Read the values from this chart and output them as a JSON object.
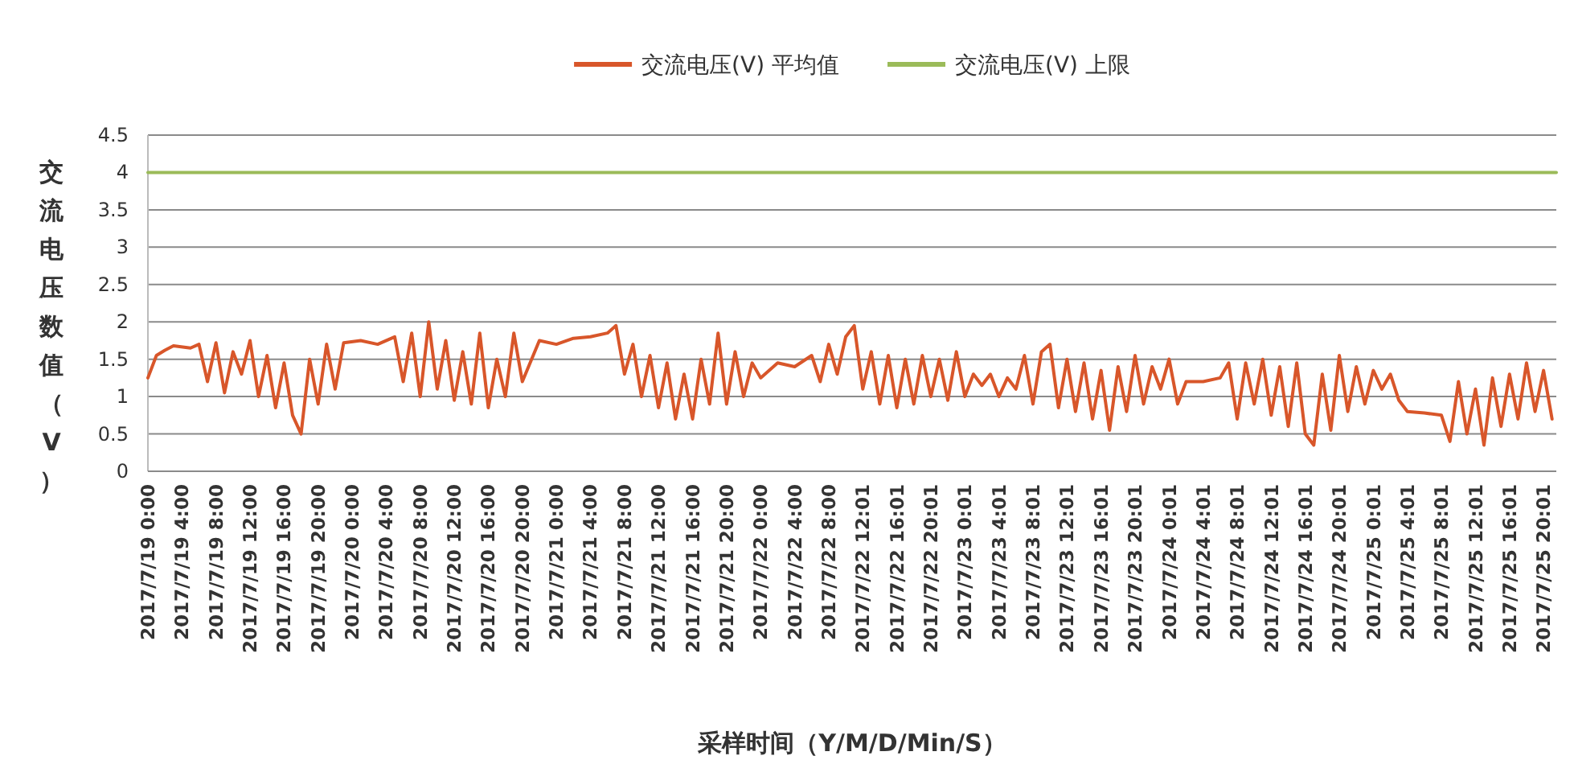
{
  "chart_data": {
    "type": "line",
    "xlabel": "采样时间（Y/M/D/Min/S）",
    "ylabel": "交流电压数值（V）",
    "legend": "top",
    "grid": "y",
    "ylim": [
      0,
      4.5
    ],
    "yticks": [
      0,
      0.5,
      1,
      1.5,
      2,
      2.5,
      3,
      3.5,
      4,
      4.5
    ],
    "xlim": [
      "2017-07-19T00:00",
      "2017-07-25T21:30"
    ],
    "xticks": [
      {
        "value": "2017-07-19T00:00",
        "label": "2017/7/19 0:00"
      },
      {
        "value": "2017-07-19T04:00",
        "label": "2017/7/19 4:00"
      },
      {
        "value": "2017-07-19T08:00",
        "label": "2017/7/19 8:00"
      },
      {
        "value": "2017-07-19T12:00",
        "label": "2017/7/19 12:00"
      },
      {
        "value": "2017-07-19T16:00",
        "label": "2017/7/19 16:00"
      },
      {
        "value": "2017-07-19T20:00",
        "label": "2017/7/19 20:00"
      },
      {
        "value": "2017-07-20T00:00",
        "label": "2017/7/20 0:00"
      },
      {
        "value": "2017-07-20T04:00",
        "label": "2017/7/20 4:00"
      },
      {
        "value": "2017-07-20T08:00",
        "label": "2017/7/20 8:00"
      },
      {
        "value": "2017-07-20T12:00",
        "label": "2017/7/20 12:00"
      },
      {
        "value": "2017-07-20T16:00",
        "label": "2017/7/20 16:00"
      },
      {
        "value": "2017-07-20T20:00",
        "label": "2017/7/20 20:00"
      },
      {
        "value": "2017-07-21T00:00",
        "label": "2017/7/21 0:00"
      },
      {
        "value": "2017-07-21T04:00",
        "label": "2017/7/21 4:00"
      },
      {
        "value": "2017-07-21T08:00",
        "label": "2017/7/21 8:00"
      },
      {
        "value": "2017-07-21T12:00",
        "label": "2017/7/21 12:00"
      },
      {
        "value": "2017-07-21T16:00",
        "label": "2017/7/21 16:00"
      },
      {
        "value": "2017-07-21T20:00",
        "label": "2017/7/21 20:00"
      },
      {
        "value": "2017-07-22T00:00",
        "label": "2017/7/22 0:00"
      },
      {
        "value": "2017-07-22T04:00",
        "label": "2017/7/22 4:00"
      },
      {
        "value": "2017-07-22T08:00",
        "label": "2017/7/22 8:00"
      },
      {
        "value": "2017-07-22T12:01",
        "label": "2017/7/22 12:01"
      },
      {
        "value": "2017-07-22T16:01",
        "label": "2017/7/22 16:01"
      },
      {
        "value": "2017-07-22T20:01",
        "label": "2017/7/22 20:01"
      },
      {
        "value": "2017-07-23T00:01",
        "label": "2017/7/23 0:01"
      },
      {
        "value": "2017-07-23T04:01",
        "label": "2017/7/23 4:01"
      },
      {
        "value": "2017-07-23T08:01",
        "label": "2017/7/23 8:01"
      },
      {
        "value": "2017-07-23T12:01",
        "label": "2017/7/23 12:01"
      },
      {
        "value": "2017-07-23T16:01",
        "label": "2017/7/23 16:01"
      },
      {
        "value": "2017-07-23T20:01",
        "label": "2017/7/23 20:01"
      },
      {
        "value": "2017-07-24T00:01",
        "label": "2017/7/24 0:01"
      },
      {
        "value": "2017-07-24T04:01",
        "label": "2017/7/24 4:01"
      },
      {
        "value": "2017-07-24T08:01",
        "label": "2017/7/24 8:01"
      },
      {
        "value": "2017-07-24T12:01",
        "label": "2017/7/24 12:01"
      },
      {
        "value": "2017-07-24T16:01",
        "label": "2017/7/24 16:01"
      },
      {
        "value": "2017-07-24T20:01",
        "label": "2017/7/24 20:01"
      },
      {
        "value": "2017-07-25T00:01",
        "label": "2017/7/25 0:01"
      },
      {
        "value": "2017-07-25T04:01",
        "label": "2017/7/25 4:01"
      },
      {
        "value": "2017-07-25T08:01",
        "label": "2017/7/25 8:01"
      },
      {
        "value": "2017-07-25T12:01",
        "label": "2017/7/25 12:01"
      },
      {
        "value": "2017-07-25T16:01",
        "label": "2017/7/25 16:01"
      },
      {
        "value": "2017-07-25T20:01",
        "label": "2017/7/25 20:01"
      }
    ],
    "series": [
      {
        "name": "交流电压(V) 平均值",
        "color": "#d8562a",
        "x": [
          "2017-07-19T00:00",
          "2017-07-19T01:00",
          "2017-07-19T02:00",
          "2017-07-19T03:00",
          "2017-07-19T05:00",
          "2017-07-19T06:00",
          "2017-07-19T07:00",
          "2017-07-19T08:00",
          "2017-07-19T09:00",
          "2017-07-19T10:00",
          "2017-07-19T11:00",
          "2017-07-19T12:00",
          "2017-07-19T13:00",
          "2017-07-19T14:00",
          "2017-07-19T15:00",
          "2017-07-19T16:00",
          "2017-07-19T17:00",
          "2017-07-19T18:00",
          "2017-07-19T19:00",
          "2017-07-19T20:00",
          "2017-07-19T21:00",
          "2017-07-19T22:00",
          "2017-07-19T23:00",
          "2017-07-20T01:00",
          "2017-07-20T03:00",
          "2017-07-20T05:00",
          "2017-07-20T06:00",
          "2017-07-20T07:00",
          "2017-07-20T08:00",
          "2017-07-20T09:00",
          "2017-07-20T10:00",
          "2017-07-20T11:00",
          "2017-07-20T12:00",
          "2017-07-20T13:00",
          "2017-07-20T14:00",
          "2017-07-20T15:00",
          "2017-07-20T16:00",
          "2017-07-20T17:00",
          "2017-07-20T18:00",
          "2017-07-20T19:00",
          "2017-07-20T20:00",
          "2017-07-20T22:00",
          "2017-07-21T00:00",
          "2017-07-21T02:00",
          "2017-07-21T04:00",
          "2017-07-21T06:00",
          "2017-07-21T07:00",
          "2017-07-21T08:00",
          "2017-07-21T09:00",
          "2017-07-21T10:00",
          "2017-07-21T11:00",
          "2017-07-21T12:00",
          "2017-07-21T13:00",
          "2017-07-21T14:00",
          "2017-07-21T15:00",
          "2017-07-21T16:00",
          "2017-07-21T17:00",
          "2017-07-21T18:00",
          "2017-07-21T19:00",
          "2017-07-21T20:00",
          "2017-07-21T21:00",
          "2017-07-21T22:00",
          "2017-07-21T23:00",
          "2017-07-22T00:00",
          "2017-07-22T02:00",
          "2017-07-22T04:00",
          "2017-07-22T06:00",
          "2017-07-22T07:00",
          "2017-07-22T08:00",
          "2017-07-22T09:00",
          "2017-07-22T10:00",
          "2017-07-22T11:00",
          "2017-07-22T12:00",
          "2017-07-22T13:00",
          "2017-07-22T14:00",
          "2017-07-22T15:00",
          "2017-07-22T16:00",
          "2017-07-22T17:00",
          "2017-07-22T18:00",
          "2017-07-22T19:00",
          "2017-07-22T20:00",
          "2017-07-22T21:00",
          "2017-07-22T22:00",
          "2017-07-22T23:00",
          "2017-07-23T00:00",
          "2017-07-23T01:00",
          "2017-07-23T02:00",
          "2017-07-23T03:00",
          "2017-07-23T04:00",
          "2017-07-23T05:00",
          "2017-07-23T06:00",
          "2017-07-23T07:00",
          "2017-07-23T08:00",
          "2017-07-23T09:00",
          "2017-07-23T10:00",
          "2017-07-23T11:00",
          "2017-07-23T12:00",
          "2017-07-23T13:00",
          "2017-07-23T14:00",
          "2017-07-23T15:00",
          "2017-07-23T16:00",
          "2017-07-23T17:00",
          "2017-07-23T18:00",
          "2017-07-23T19:00",
          "2017-07-23T20:00",
          "2017-07-23T21:00",
          "2017-07-23T22:00",
          "2017-07-23T23:00",
          "2017-07-24T00:00",
          "2017-07-24T01:00",
          "2017-07-24T02:00",
          "2017-07-24T04:00",
          "2017-07-24T06:00",
          "2017-07-24T07:00",
          "2017-07-24T08:00",
          "2017-07-24T09:00",
          "2017-07-24T10:00",
          "2017-07-24T11:00",
          "2017-07-24T12:00",
          "2017-07-24T13:00",
          "2017-07-24T14:00",
          "2017-07-24T15:00",
          "2017-07-24T16:00",
          "2017-07-24T17:00",
          "2017-07-24T18:00",
          "2017-07-24T19:00",
          "2017-07-24T20:00",
          "2017-07-24T21:00",
          "2017-07-24T22:00",
          "2017-07-24T23:00",
          "2017-07-25T00:00",
          "2017-07-25T01:00",
          "2017-07-25T02:00",
          "2017-07-25T03:00",
          "2017-07-25T04:00",
          "2017-07-25T06:00",
          "2017-07-25T08:00",
          "2017-07-25T09:00",
          "2017-07-25T10:00",
          "2017-07-25T11:00",
          "2017-07-25T12:00",
          "2017-07-25T13:00",
          "2017-07-25T14:00",
          "2017-07-25T15:00",
          "2017-07-25T16:00",
          "2017-07-25T17:00",
          "2017-07-25T18:00",
          "2017-07-25T19:00",
          "2017-07-25T20:00",
          "2017-07-25T21:00"
        ],
        "values": [
          1.25,
          1.55,
          1.62,
          1.68,
          1.65,
          1.7,
          1.2,
          1.72,
          1.05,
          1.6,
          1.3,
          1.75,
          1.0,
          1.55,
          0.85,
          1.45,
          0.75,
          0.5,
          1.5,
          0.9,
          1.7,
          1.1,
          1.72,
          1.75,
          1.7,
          1.8,
          1.2,
          1.85,
          1.0,
          2.0,
          1.1,
          1.75,
          0.95,
          1.6,
          0.9,
          1.85,
          0.85,
          1.5,
          1.0,
          1.85,
          1.2,
          1.75,
          1.7,
          1.78,
          1.8,
          1.85,
          1.95,
          1.3,
          1.7,
          1.0,
          1.55,
          0.85,
          1.45,
          0.7,
          1.3,
          0.7,
          1.5,
          0.9,
          1.85,
          0.9,
          1.6,
          1.0,
          1.45,
          1.25,
          1.45,
          1.4,
          1.55,
          1.2,
          1.7,
          1.3,
          1.8,
          1.95,
          1.1,
          1.6,
          0.9,
          1.55,
          0.85,
          1.5,
          0.9,
          1.55,
          1.0,
          1.5,
          0.95,
          1.6,
          1.0,
          1.3,
          1.15,
          1.3,
          1.0,
          1.25,
          1.1,
          1.55,
          0.9,
          1.6,
          1.7,
          0.85,
          1.5,
          0.8,
          1.45,
          0.7,
          1.35,
          0.55,
          1.4,
          0.8,
          1.55,
          0.9,
          1.4,
          1.1,
          1.5,
          0.9,
          1.2,
          1.2,
          1.25,
          1.45,
          0.7,
          1.45,
          0.9,
          1.5,
          0.75,
          1.4,
          0.6,
          1.45,
          0.5,
          0.35,
          1.3,
          0.55,
          1.55,
          0.8,
          1.4,
          0.9,
          1.35,
          1.1,
          1.3,
          0.95,
          0.8,
          0.78,
          0.75,
          0.4,
          1.2,
          0.5,
          1.1,
          0.35,
          1.25,
          0.6,
          1.3,
          0.7,
          1.45,
          0.8,
          1.35,
          0.7
        ]
      },
      {
        "name": "交流电压(V) 上限",
        "color": "#9bbb59",
        "x": [
          "2017-07-19T00:00",
          "2017-07-25T21:30"
        ],
        "values": [
          4,
          4
        ]
      }
    ]
  }
}
